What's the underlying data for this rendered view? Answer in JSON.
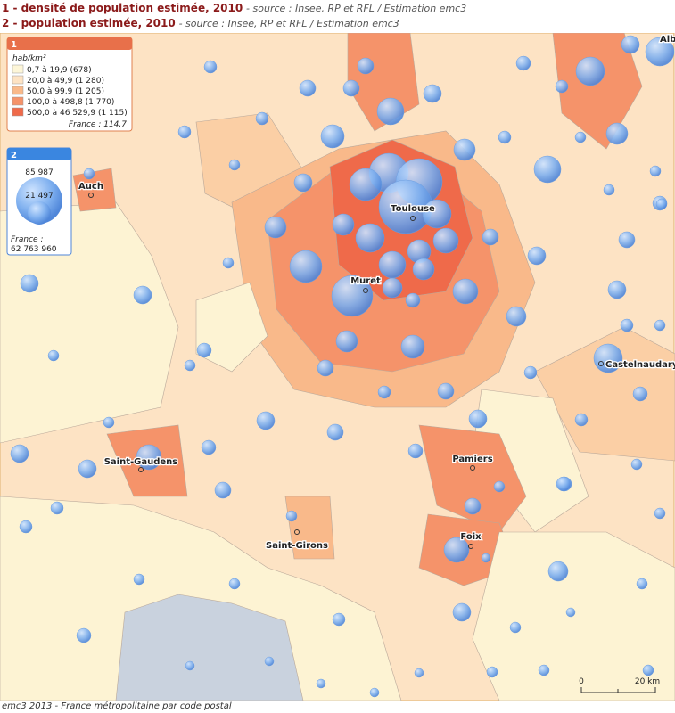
{
  "header": {
    "line1_title": "1 - densité de population estimée, 2010",
    "line1_source": "- source : Insee, RP et RFL / Estimation emc3",
    "line2_title": "2 - population estimée, 2010",
    "line2_source": "- source : Insee, RP et RFL / Estimation emc3"
  },
  "legend1": {
    "number": "1",
    "unit": "hab/km²",
    "classes": [
      "0,7 à 19,9 (678)",
      "20,0 à 49,9 (1 280)",
      "50,0 à 99,9 (1 205)",
      "100,0 à 498,8 (1 770)",
      "500,0 à 46 529,9 (1 115)"
    ],
    "france": "France : 114,7"
  },
  "legend2": {
    "number": "2",
    "large": "85 987",
    "small": "21 497",
    "france_label": "France :",
    "france_value": "62 763 960"
  },
  "cities": [
    "Toulouse",
    "Muret",
    "Auch",
    "Saint-Gaudens",
    "Pamiers",
    "Foix",
    "Saint-Girons",
    "Castelnaudary",
    "Alb"
  ],
  "scale": {
    "start": "0",
    "end": "20 km"
  },
  "footer": "emc3 2013 - France métropolitaine par code postal"
}
